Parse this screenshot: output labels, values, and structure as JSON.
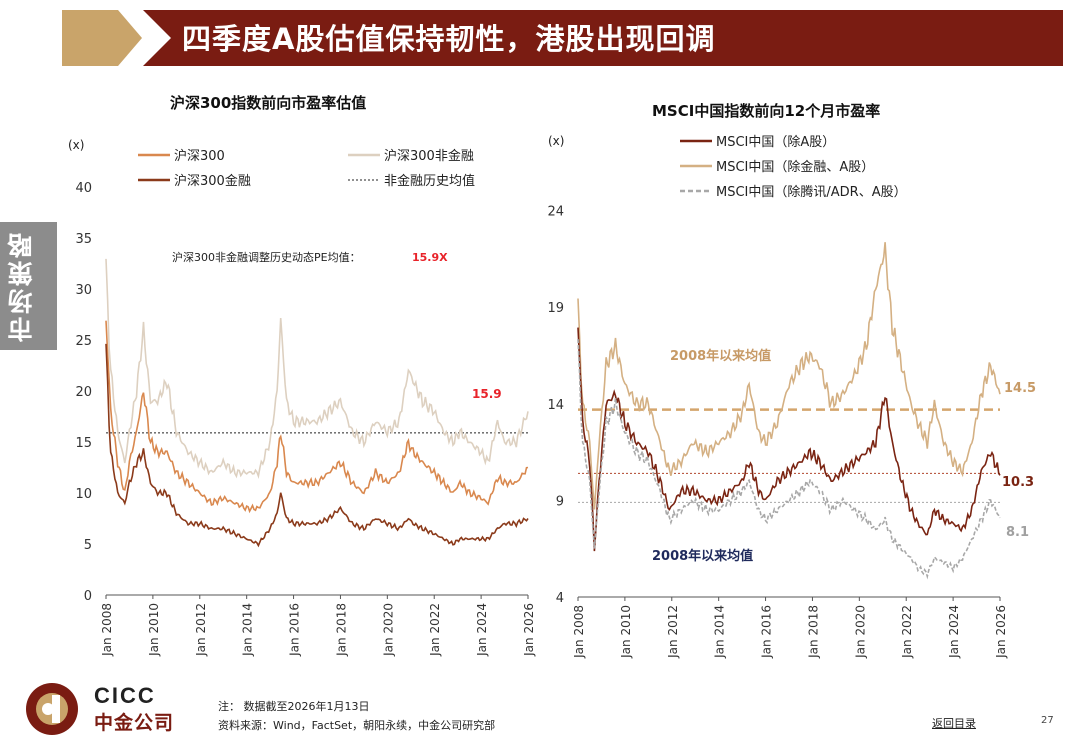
{
  "header": {
    "title": "四季度A股估值保持韧性，港股出现回调"
  },
  "side_tab": {
    "label": "市场策略"
  },
  "chart_data": [
    {
      "type": "line",
      "title": "沪深300指数前向市盈率估值",
      "ylabel": "(x)",
      "ylim": [
        0,
        40
      ],
      "yticks": [
        0,
        5,
        10,
        15,
        20,
        25,
        30,
        35,
        40
      ],
      "xlim": [
        2008,
        2026
      ],
      "xticks": [
        "Jan 2008",
        "Jan 2010",
        "Jan 2012",
        "Jan 2014",
        "Jan 2016",
        "Jan 2018",
        "Jan 2020",
        "Jan 2022",
        "Jan 2024",
        "Jan 2026"
      ],
      "annotation": "沪深300非金融调整历史动态PE均值：",
      "annotation_value": "15.9X",
      "reference_label": "15.9",
      "reference_value": 15.9,
      "legend": [
        {
          "name": "沪深300",
          "color": "#d9884e",
          "style": "solid"
        },
        {
          "name": "沪深300非金融",
          "color": "#ddd0c0",
          "style": "solid"
        },
        {
          "name": "沪深300金融",
          "color": "#8b3a1a",
          "style": "solid"
        },
        {
          "name": "非金融历史均值",
          "color": "#222222",
          "style": "dotted"
        }
      ],
      "series": [
        {
          "name": "沪深300非金融",
          "color": "#ddd0c0",
          "x": [
            2008.0,
            2008.2,
            2008.5,
            2008.8,
            2009.0,
            2009.3,
            2009.6,
            2009.9,
            2010.2,
            2010.6,
            2011.0,
            2011.5,
            2012.0,
            2012.5,
            2013.0,
            2013.5,
            2014.0,
            2014.5,
            2015.0,
            2015.3,
            2015.45,
            2015.7,
            2016.0,
            2016.5,
            2017.0,
            2017.5,
            2018.0,
            2018.5,
            2019.0,
            2019.5,
            2020.0,
            2020.5,
            2020.9,
            2021.1,
            2021.5,
            2022.0,
            2022.4,
            2022.8,
            2023.1,
            2023.5,
            2024.0,
            2024.3,
            2024.7,
            2025.0,
            2025.5,
            2026.0
          ],
          "y": [
            32,
            22,
            16,
            13,
            16,
            20,
            26,
            19,
            19,
            21,
            16,
            14,
            13,
            12,
            13,
            12,
            12,
            12,
            15,
            20,
            27,
            19,
            17,
            17,
            17,
            18,
            19,
            16,
            15,
            17,
            16,
            17,
            22,
            21,
            19,
            18,
            16,
            15,
            16,
            15,
            14,
            13,
            17,
            15,
            15,
            18
          ]
        },
        {
          "name": "沪深300",
          "color": "#d9884e",
          "x": [
            2008.0,
            2008.2,
            2008.5,
            2008.8,
            2009.0,
            2009.3,
            2009.6,
            2009.9,
            2010.2,
            2010.6,
            2011.0,
            2011.5,
            2012.0,
            2012.5,
            2013.0,
            2013.5,
            2014.0,
            2014.5,
            2015.0,
            2015.3,
            2015.45,
            2015.7,
            2016.0,
            2016.5,
            2017.0,
            2017.5,
            2018.0,
            2018.5,
            2019.0,
            2019.5,
            2020.0,
            2020.5,
            2020.9,
            2021.1,
            2021.5,
            2022.0,
            2022.4,
            2022.8,
            2023.1,
            2023.5,
            2024.0,
            2024.3,
            2024.7,
            2025.0,
            2025.5,
            2026.0
          ],
          "y": [
            27,
            18,
            13,
            10,
            13,
            16,
            20,
            15,
            14,
            14,
            12,
            11,
            10,
            9,
            9.5,
            9,
            8.5,
            8.5,
            10,
            13,
            16,
            12,
            11,
            11,
            11,
            12,
            13,
            11,
            10,
            12,
            11,
            12,
            15,
            14,
            13,
            12,
            11,
            10,
            11,
            10,
            9.5,
            9,
            11.5,
            11,
            11,
            12.5
          ]
        },
        {
          "name": "沪深300金融",
          "color": "#8b3a1a",
          "x": [
            2008.0,
            2008.2,
            2008.5,
            2008.8,
            2009.0,
            2009.3,
            2009.6,
            2009.9,
            2010.2,
            2010.6,
            2011.0,
            2011.5,
            2012.0,
            2012.5,
            2013.0,
            2013.5,
            2014.0,
            2014.5,
            2015.0,
            2015.3,
            2015.45,
            2015.7,
            2016.0,
            2016.5,
            2017.0,
            2017.5,
            2018.0,
            2018.5,
            2019.0,
            2019.5,
            2020.0,
            2020.5,
            2020.9,
            2021.1,
            2021.5,
            2022.0,
            2022.4,
            2022.8,
            2023.1,
            2023.5,
            2024.0,
            2024.3,
            2024.7,
            2025.0,
            2025.5,
            2026.0
          ],
          "y": [
            24,
            14,
            10,
            9,
            11,
            13,
            14,
            11,
            10,
            10,
            8,
            7,
            7,
            6.5,
            6.5,
            6,
            5.5,
            5,
            6.5,
            8,
            10,
            7.5,
            7,
            7,
            7,
            7.5,
            8.5,
            7,
            6.5,
            7.5,
            7,
            6.5,
            7.5,
            7,
            6.5,
            6,
            5.5,
            5,
            5.5,
            5.5,
            5.5,
            5.5,
            6.5,
            7,
            7,
            7.5
          ]
        }
      ]
    },
    {
      "type": "line",
      "title": "MSCI中国指数前向12个月市盈率",
      "ylabel": "(x)",
      "ylim": [
        4,
        26
      ],
      "yticks": [
        4,
        9,
        14,
        19,
        24
      ],
      "xlim": [
        2008,
        2026
      ],
      "xticks": [
        "Jan 2008",
        "Jan 2010",
        "Jan 2012",
        "Jan 2014",
        "Jan 2016",
        "Jan 2018",
        "Jan 2020",
        "Jan 2022",
        "Jan 2024",
        "Jan 2026"
      ],
      "legend": [
        {
          "name": "MSCI中国（除A股）",
          "color": "#7a2412",
          "style": "solid"
        },
        {
          "name": "MSCI中国（除金融、A股）",
          "color": "#d4b083",
          "style": "solid"
        },
        {
          "name": "MSCI中国（除腾讯/ADR、A股）",
          "color": "#a8a8a8",
          "style": "dashed"
        }
      ],
      "annotations": {
        "avg_label_top": "2008年以来均值",
        "avg_label_bottom": "2008年以来均值"
      },
      "end_labels": [
        {
          "text": "14.5",
          "color": "#c79a66"
        },
        {
          "text": "10.3",
          "color": "#7a2412"
        },
        {
          "text": "8.1",
          "color": "#a0a0a0"
        }
      ],
      "reference_lines": [
        {
          "value": 13.7,
          "color": "#d4a56c",
          "style": "dashed"
        },
        {
          "value": 10.4,
          "color": "#b0462c",
          "style": "dotted"
        },
        {
          "value": 8.9,
          "color": "#a8a8a8",
          "style": "dotted"
        }
      ],
      "series": [
        {
          "name": "MSCI中国（除金融、A股）",
          "color": "#d4b083",
          "x": [
            2008.0,
            2008.2,
            2008.5,
            2008.7,
            2008.9,
            2009.2,
            2009.6,
            2010.0,
            2010.5,
            2011.0,
            2011.5,
            2011.9,
            2012.4,
            2012.9,
            2013.5,
            2014.0,
            2014.5,
            2015.0,
            2015.3,
            2015.7,
            2016.0,
            2016.5,
            2017.0,
            2017.5,
            2017.9,
            2018.3,
            2018.8,
            2019.3,
            2019.8,
            2020.3,
            2020.7,
            2021.1,
            2021.4,
            2021.8,
            2022.2,
            2022.5,
            2022.9,
            2023.2,
            2023.6,
            2024.0,
            2024.4,
            2024.8,
            2025.2,
            2025.6,
            2026.0
          ],
          "y": [
            19,
            14,
            12,
            8.5,
            12,
            16,
            17,
            15,
            14,
            14,
            12,
            10.5,
            11,
            12,
            11.5,
            12,
            12.5,
            13.5,
            15,
            12.5,
            12,
            13,
            15,
            16,
            16.5,
            16,
            14,
            14.5,
            15.5,
            17,
            20,
            22,
            18,
            16,
            14,
            13,
            12,
            14,
            12,
            11,
            10.5,
            12,
            14.5,
            16,
            14.5
          ]
        },
        {
          "name": "MSCI中国（除A股）",
          "color": "#7a2412",
          "x": [
            2008.0,
            2008.2,
            2008.5,
            2008.7,
            2008.9,
            2009.2,
            2009.6,
            2010.0,
            2010.5,
            2011.0,
            2011.5,
            2011.9,
            2012.4,
            2012.9,
            2013.5,
            2014.0,
            2014.5,
            2015.0,
            2015.3,
            2015.7,
            2016.0,
            2016.5,
            2017.0,
            2017.5,
            2017.9,
            2018.3,
            2018.8,
            2019.3,
            2019.8,
            2020.3,
            2020.7,
            2021.1,
            2021.4,
            2021.8,
            2022.2,
            2022.5,
            2022.9,
            2023.2,
            2023.6,
            2024.0,
            2024.4,
            2024.8,
            2025.2,
            2025.6,
            2026.0
          ],
          "y": [
            18,
            13,
            11,
            6.5,
            10,
            14,
            14.5,
            13,
            12,
            11.5,
            10,
            8.5,
            9.5,
            9.5,
            9,
            9,
            9.5,
            10,
            11,
            9.5,
            9,
            10,
            10.5,
            11,
            11.5,
            11,
            10,
            10.5,
            11,
            11.5,
            12,
            14.5,
            12,
            10,
            8.5,
            7.8,
            7.2,
            8.5,
            8,
            7.8,
            7.5,
            8.5,
            10.5,
            11.5,
            10.3
          ]
        },
        {
          "name": "MSCI中国（除腾讯/ADR、A股）",
          "color": "#a8a8a8",
          "x": [
            2008.0,
            2008.2,
            2008.5,
            2008.7,
            2008.9,
            2009.2,
            2009.6,
            2010.0,
            2010.5,
            2011.0,
            2011.5,
            2011.9,
            2012.4,
            2012.9,
            2013.5,
            2014.0,
            2014.5,
            2015.0,
            2015.3,
            2015.7,
            2016.0,
            2016.5,
            2017.0,
            2017.5,
            2017.9,
            2018.3,
            2018.8,
            2019.3,
            2019.8,
            2020.3,
            2020.7,
            2021.1,
            2021.4,
            2021.8,
            2022.2,
            2022.5,
            2022.9,
            2023.2,
            2023.6,
            2024.0,
            2024.4,
            2024.8,
            2025.2,
            2025.6,
            2026.0
          ],
          "y": [
            17,
            12,
            10,
            6.5,
            9.5,
            13,
            14,
            12.5,
            11.5,
            11,
            9.5,
            8,
            8.5,
            9,
            8.5,
            8.5,
            9,
            9.5,
            10,
            8.5,
            8,
            8.5,
            9,
            9.5,
            10,
            9.5,
            8.5,
            9,
            8.5,
            8,
            7.5,
            8,
            7,
            6.5,
            6,
            5.5,
            5.2,
            6,
            5.8,
            5.5,
            6,
            7,
            8,
            9,
            8.1
          ]
        }
      ]
    }
  ],
  "footer": {
    "logo_en": "CICC",
    "logo_cn": "中金公司",
    "note": "注：  数据截至2026年1月13日",
    "source": "资料来源：Wind，FactSet，朝阳永续，中金公司研究部",
    "back_link": "返回目录",
    "page_number": "27"
  },
  "colors": {
    "brand_red": "#7a1c12",
    "brand_gold": "#c9a46a",
    "tab_gray": "#8c8c8c"
  }
}
